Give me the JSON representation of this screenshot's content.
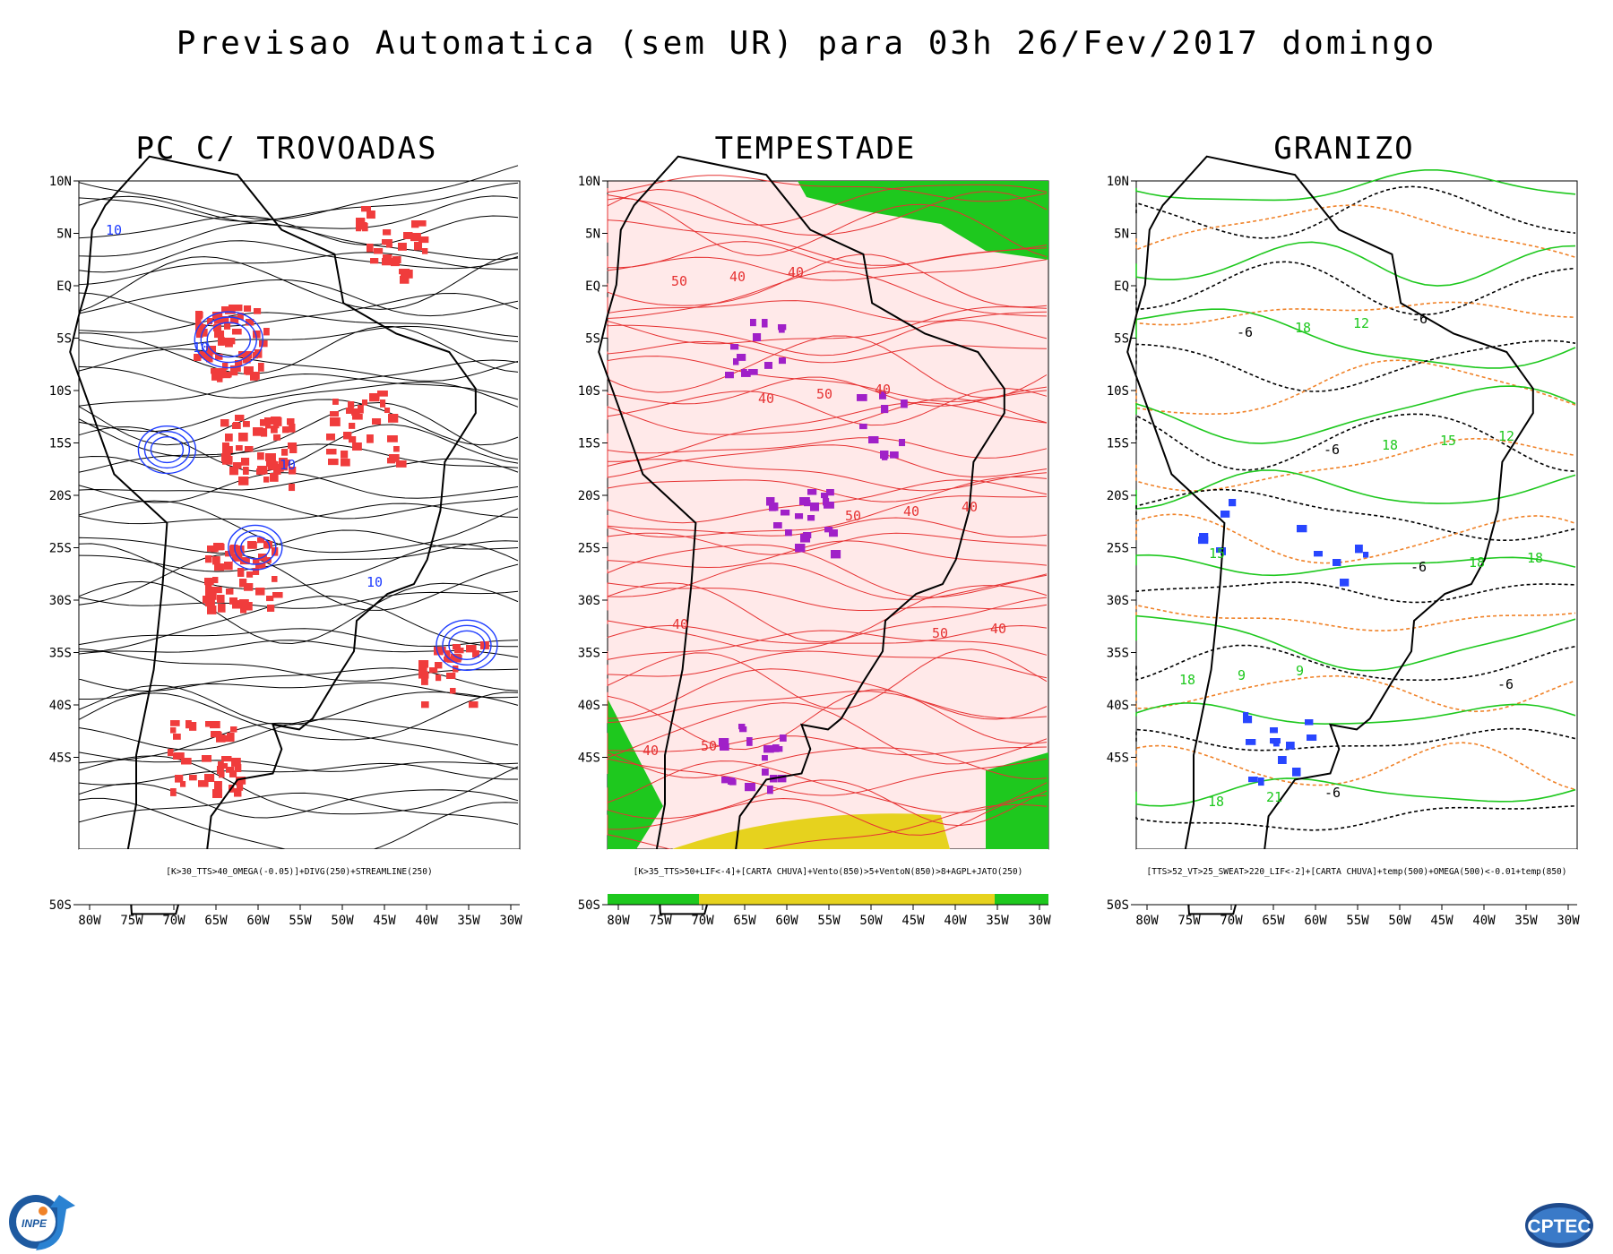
{
  "title": "Previsao Automatica (sem UR) para 03h 26/Fev/2017 domingo",
  "axes": {
    "lat_ticks": [
      "10N",
      "5N",
      "EQ",
      "5S",
      "10S",
      "15S",
      "20S",
      "25S",
      "30S",
      "35S",
      "40S",
      "45S",
      "50S"
    ],
    "lon_ticks": [
      "80W",
      "75W",
      "70W",
      "65W",
      "60W",
      "55W",
      "50W",
      "45W",
      "40W",
      "35W",
      "30W"
    ]
  },
  "panels": [
    {
      "title": "PC C/ TROVOADAS",
      "caption": "[K>30_TTS>40_OMEGA(-0.05)]+DIVG(250)+STREAMLINE(250)",
      "contour_labels": [
        "10",
        "10",
        "10",
        "10"
      ],
      "colors": {
        "fill": "#f03c3c",
        "contour": "#1e3cff",
        "stream": "#000000"
      }
    },
    {
      "title": "TEMPESTADE",
      "caption": "[K>35_TTS>50+LIF<-4]+[CARTA CHUVA]+Vento(850)>5+VentoN(850)>8+AGPL+JATO(250)",
      "contour_labels": [
        "50",
        "40",
        "50",
        "50",
        "40",
        "40",
        "50",
        "40",
        "40",
        "50",
        "40",
        "40",
        "40",
        "40"
      ],
      "colors": {
        "fill": "#ffe6e6",
        "stream": "#e63232",
        "green": "#1ec81e",
        "yellow": "#e6d21e",
        "purple": "#a020c8"
      }
    },
    {
      "title": "GRANIZO",
      "caption": "[TTS>52_VT>25_SWEAT>220_LIF<-2]+[CARTA CHUVA]+temp(500)+OMEGA(500)<-0.01+temp(850)",
      "contour_labels": [
        "-6",
        "-6",
        "-6",
        "-6",
        "18",
        "18",
        "18",
        "18",
        "18",
        "21",
        "12",
        "15",
        "18",
        "9",
        "-6",
        "-6",
        "12",
        "15",
        "9"
      ],
      "colors": {
        "green": "#1ec81e",
        "orange": "#f08228",
        "black": "#000000",
        "blue": "#2846ff"
      }
    }
  ],
  "logos": {
    "left": "INPE",
    "right": "CPTEC"
  }
}
